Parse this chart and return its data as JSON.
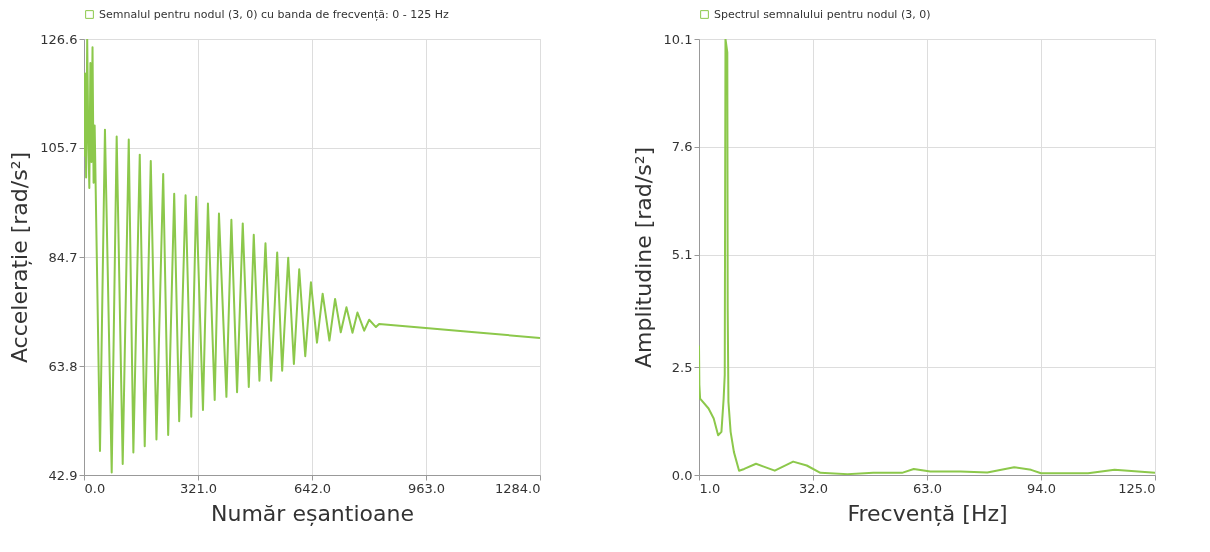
{
  "chart_data": [
    {
      "type": "line",
      "xlabel": "Număr eșantioane",
      "ylabel": "Accelerație [rad/s²]",
      "legend": "top",
      "grid": true,
      "line_style": "solid",
      "marker": "none",
      "xlim": [
        0,
        1284
      ],
      "ylim": [
        42.9,
        126.6
      ],
      "xticks": [
        {
          "value": 0,
          "label": "0.0"
        },
        {
          "value": 321,
          "label": "321.0"
        },
        {
          "value": 642,
          "label": "642.0"
        },
        {
          "value": 963,
          "label": "963.0"
        },
        {
          "value": 1284,
          "label": "1284.0"
        }
      ],
      "yticks": [
        42.9,
        63.8,
        84.7,
        105.7,
        126.6
      ],
      "series": [
        {
          "name": "Semnalul pentru nodul (3, 0) cu banda de frecvență: 0 - 125 Hz",
          "color": "#8cc84b",
          "x": [
            0,
            3,
            6,
            9,
            12,
            15,
            18,
            21,
            24,
            27,
            30,
            45,
            59,
            78,
            92,
            109,
            126,
            139,
            157,
            171,
            188,
            204,
            223,
            237,
            254,
            268,
            286,
            302,
            316,
            335,
            349,
            368,
            380,
            401,
            415,
            431,
            447,
            464,
            478,
            494,
            511,
            527,
            544,
            558,
            575,
            591,
            606,
            623,
            639,
            656,
            672,
            691,
            707,
            723,
            739,
            756,
            770,
            789,
            803,
            822,
            831,
            962,
            1100,
            1284
          ],
          "values": [
            104,
            120,
            100,
            126.6,
            108,
            98,
            122,
            103,
            125,
            99,
            110,
            47.5,
            109.2,
            43.4,
            107.9,
            45.0,
            107.3,
            47.2,
            104.4,
            48.4,
            103.2,
            49.7,
            100.7,
            50.6,
            96.9,
            53.2,
            96.6,
            54.1,
            96.3,
            55.4,
            95.0,
            57.3,
            93.1,
            57.9,
            91.9,
            58.8,
            91.2,
            59.8,
            89.0,
            61.0,
            87.4,
            61.0,
            85.6,
            62.9,
            84.6,
            64.2,
            82.4,
            65.7,
            79.9,
            68.3,
            77.7,
            68.7,
            76.7,
            70.3,
            75.1,
            70.2,
            74.1,
            70.6,
            72.7,
            71.3,
            71.9,
            71.1,
            70.3,
            69.2
          ]
        }
      ]
    },
    {
      "type": "line",
      "xlabel": "Frecvență [Hz]",
      "ylabel": "Amplitudine [rad/s²]",
      "legend": "top",
      "grid": true,
      "line_style": "solid",
      "marker": "none",
      "xlim": [
        1,
        125
      ],
      "ylim": [
        0,
        10.1
      ],
      "xticks": [
        {
          "value": 1,
          "label": "1.0"
        },
        {
          "value": 32,
          "label": "32.0"
        },
        {
          "value": 63,
          "label": "63.0"
        },
        {
          "value": 94,
          "label": "94.0"
        },
        {
          "value": 125,
          "label": "125.0"
        }
      ],
      "yticks": [
        {
          "value": 0,
          "label": "0.0"
        },
        2.5,
        5.1,
        7.6,
        10.1
      ],
      "series": [
        {
          "name": "Spectrul semnalului pentru nodul (3, 0)",
          "color": "#8cc84b",
          "x": [
            1,
            1.1,
            1.3,
            3.6,
            5.0,
            6.2,
            7.1,
            7.7,
            8.0,
            8.2,
            8.7,
            8.8,
            9.0,
            9.6,
            10.5,
            11.9,
            13.3,
            16.5,
            21.6,
            26.6,
            30.3,
            34.0,
            41.4,
            48.4,
            50.6,
            56.2,
            59.4,
            63.9,
            72.1,
            79.4,
            86.7,
            91.3,
            94,
            106.8,
            114.0,
            125
          ],
          "values": [
            3.0,
            2.09,
            1.77,
            1.54,
            1.31,
            0.92,
            1.0,
            1.77,
            2.32,
            10.1,
            9.79,
            3.88,
            1.7,
            1.0,
            0.53,
            0.1,
            0.14,
            0.26,
            0.1,
            0.31,
            0.22,
            0.05,
            0.02,
            0.05,
            0.05,
            0.05,
            0.14,
            0.08,
            0.08,
            0.06,
            0.18,
            0.12,
            0.04,
            0.04,
            0.12,
            0.05
          ]
        }
      ]
    }
  ]
}
